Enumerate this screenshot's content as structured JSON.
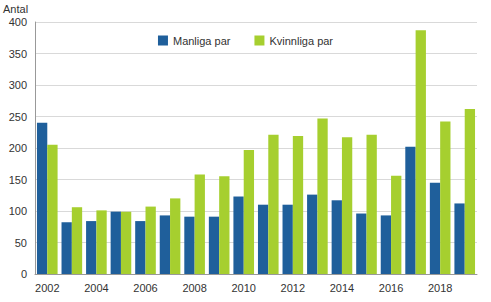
{
  "chart_data": {
    "type": "bar",
    "y_label": "Antal",
    "categories": [
      "2002",
      null,
      "2004",
      null,
      "2006",
      null,
      "2008",
      null,
      "2010",
      null,
      "2012",
      null,
      "2014",
      null,
      "2016",
      null,
      "2018",
      null
    ],
    "series": [
      {
        "name": "Manliga par",
        "color": "#1f5f9b",
        "values": [
          240,
          82,
          84,
          99,
          84,
          93,
          91,
          91,
          123,
          110,
          110,
          126,
          117,
          96,
          93,
          202,
          145,
          112
        ]
      },
      {
        "name": "Kvinnliga par",
        "color": "#a6cf2f",
        "values": [
          205,
          106,
          101,
          99,
          107,
          120,
          158,
          155,
          197,
          221,
          219,
          247,
          217,
          221,
          156,
          387,
          242,
          262
        ]
      }
    ],
    "ylim": [
      0,
      400
    ],
    "yticks": [
      0,
      50,
      100,
      150,
      200,
      250,
      300,
      350,
      400
    ],
    "grid": true,
    "legend": "top"
  }
}
